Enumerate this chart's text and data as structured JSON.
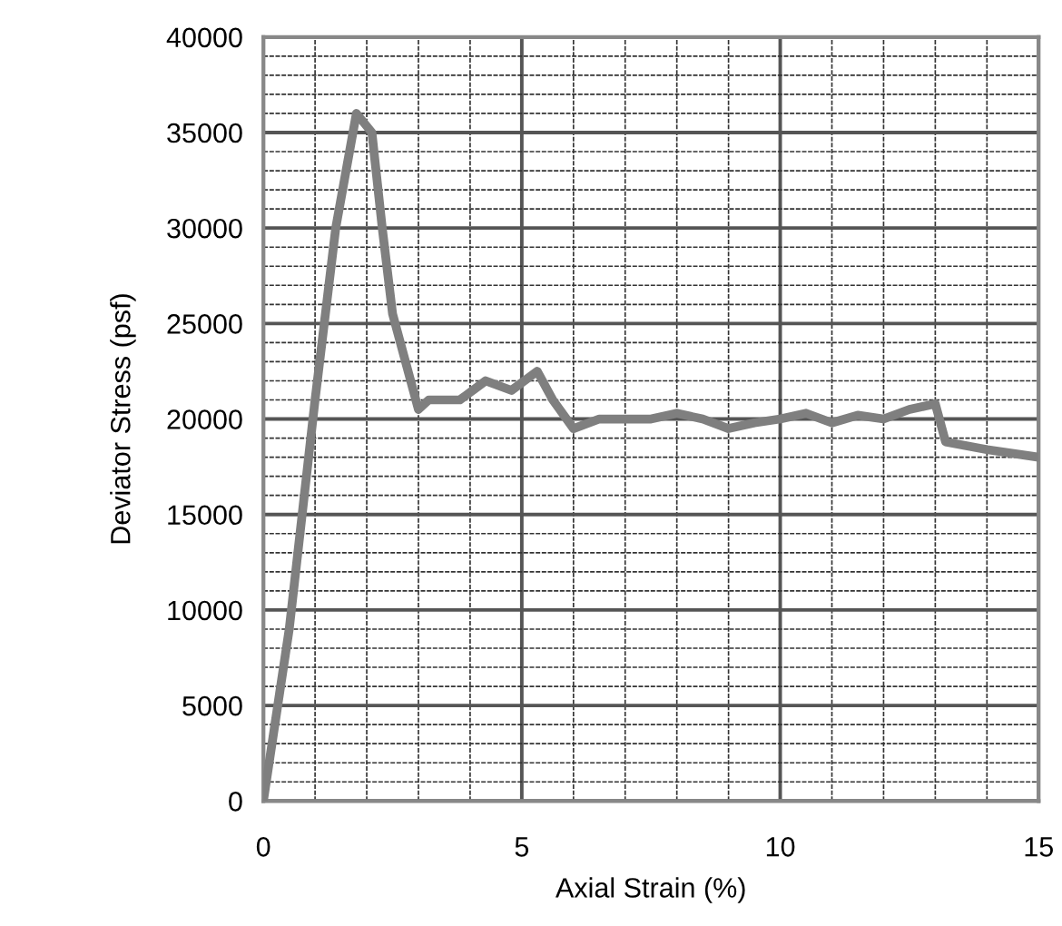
{
  "chart_data": {
    "type": "line",
    "xlabel": "Axial Strain (%)",
    "ylabel": "Deviator Stress (psf)",
    "xlim": [
      0,
      15
    ],
    "ylim": [
      0,
      40000
    ],
    "xticks": [
      0,
      5,
      10,
      15
    ],
    "yticks": [
      0,
      5000,
      10000,
      15000,
      20000,
      25000,
      30000,
      35000,
      40000
    ],
    "grid": true,
    "line_style": "solid",
    "marker": "none",
    "series": [
      {
        "color": "#7f7f7f",
        "x": [
          0,
          0.5,
          1.0,
          1.4,
          1.8,
          2.1,
          2.3,
          2.5,
          2.9,
          3.0,
          3.2,
          3.8,
          4.3,
          4.8,
          5.3,
          5.6,
          6.0,
          6.5,
          7.5,
          8.0,
          8.5,
          9.0,
          9.5,
          10.0,
          10.5,
          11.0,
          11.5,
          12.0,
          12.5,
          13.0,
          13.2,
          14.0,
          15.0
        ],
        "values": [
          0,
          9000,
          21000,
          30000,
          36000,
          35000,
          30000,
          25500,
          21500,
          20500,
          21000,
          21000,
          22000,
          21500,
          22500,
          21000,
          19500,
          20000,
          20000,
          20300,
          20000,
          19500,
          19800,
          20000,
          20300,
          19800,
          20200,
          20000,
          20500,
          20800,
          18800,
          18400,
          18000
        ]
      }
    ]
  }
}
